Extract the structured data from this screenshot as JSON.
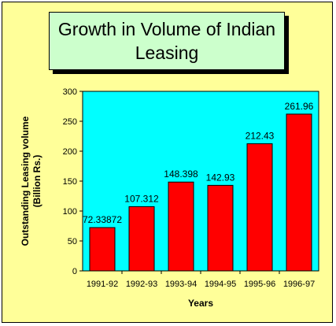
{
  "chart_data": {
    "type": "bar",
    "title_lines": [
      "Growth in Volume of Indian",
      "Leasing"
    ],
    "xlabel": "Years",
    "ylabel_lines": [
      "Outstanding Leasing volume",
      "(Billion Rs.)"
    ],
    "categories": [
      "1991-92",
      "1992-93",
      "1993-94",
      "1994-95",
      "1995-96",
      "1996-97"
    ],
    "values": [
      72.33872,
      107.312,
      148.398,
      142.93,
      212.43,
      261.96
    ],
    "data_labels": [
      "72.33872",
      "107.312",
      "148.398",
      "142.93",
      "212.43",
      "261.96"
    ],
    "ylim": [
      0,
      300
    ],
    "yticks": [
      "0",
      "50",
      "100",
      "150",
      "200",
      "250",
      "300"
    ],
    "grid": false,
    "colors": {
      "background": "#ffff99",
      "title_box": "#ccffcc",
      "plot_area": "#00ffff",
      "bar": "#ff0000"
    }
  }
}
